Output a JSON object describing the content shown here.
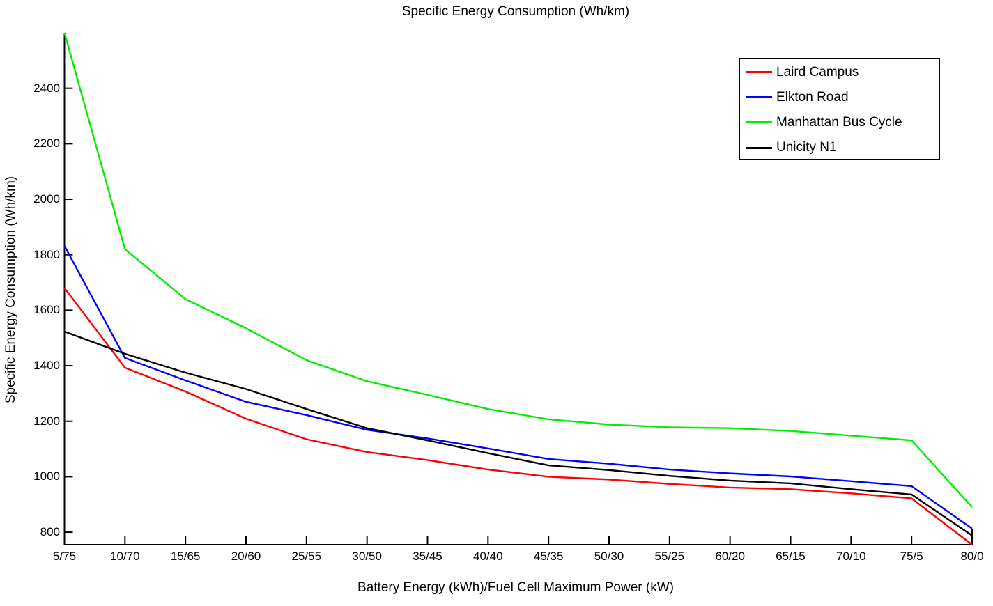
{
  "title": "Specific Energy Consumption (Wh/km)",
  "chart_data": {
    "type": "line",
    "title": "Specific Energy Consumption (Wh/km)",
    "xlabel": "Battery Energy (kWh)/Fuel Cell Maximum Power (kW)",
    "ylabel": "Specific Energy Consumption (Wh/km)",
    "categories": [
      "5/75",
      "10/70",
      "15/65",
      "20/60",
      "25/55",
      "30/50",
      "35/45",
      "40/40",
      "45/35",
      "50/30",
      "55/25",
      "60/20",
      "65/15",
      "70/10",
      "75/5",
      "80/0"
    ],
    "series": [
      {
        "name": "Laird Campus",
        "color": "#FF0000",
        "values": [
          1680,
          1393,
          1307,
          1209,
          1135,
          1089,
          1060,
          1026,
          1000,
          990,
          974,
          961,
          955,
          940,
          922,
          755
        ]
      },
      {
        "name": "Elkton Road",
        "color": "#0000FF",
        "values": [
          1832,
          1428,
          1347,
          1270,
          1222,
          1169,
          1138,
          1102,
          1064,
          1047,
          1026,
          1012,
          1001,
          984,
          966,
          813
        ]
      },
      {
        "name": "Manhattan Bus Cycle",
        "color": "#00EE00",
        "values": [
          2600,
          1820,
          1640,
          1535,
          1420,
          1344,
          1295,
          1244,
          1207,
          1188,
          1178,
          1175,
          1165,
          1148,
          1131,
          890
        ]
      },
      {
        "name": "Unicity N1",
        "color": "#000000",
        "values": [
          1523,
          1443,
          1375,
          1316,
          1244,
          1175,
          1131,
          1085,
          1041,
          1024,
          1003,
          986,
          976,
          955,
          936,
          788
        ]
      }
    ],
    "y_ticks": [
      800,
      1000,
      1200,
      1400,
      1600,
      1800,
      2000,
      2200,
      2400
    ],
    "ylim": [
      755,
      2600
    ],
    "grid": false,
    "legend_position": "top-right",
    "axis_color": "#000000"
  }
}
